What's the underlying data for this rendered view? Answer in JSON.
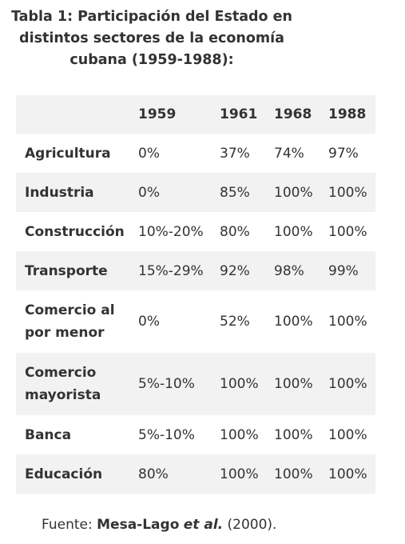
{
  "caption": {
    "line1": "Tabla 1: Participación del Estado en",
    "line2": "distintos sectores de la economía",
    "line3": "cubana (1959-1988):"
  },
  "table": {
    "headers": [
      "",
      "1959",
      "1961",
      "1968",
      "1988"
    ],
    "rows": [
      {
        "sector": "Agricultura",
        "values": [
          "0%",
          "37%",
          "74%",
          "97%"
        ]
      },
      {
        "sector": "Industria",
        "values": [
          "0%",
          "85%",
          "100%",
          "100%"
        ]
      },
      {
        "sector": "Construcción",
        "values": [
          "10%-20%",
          "80%",
          "100%",
          "100%"
        ]
      },
      {
        "sector": "Transporte",
        "values": [
          "15%-29%",
          "92%",
          "98%",
          "99%"
        ]
      },
      {
        "sector": "Comercio al por menor",
        "values": [
          "0%",
          "52%",
          "100%",
          "100%"
        ]
      },
      {
        "sector": "Comercio mayorista",
        "values": [
          "5%-10%",
          "100%",
          "100%",
          "100%"
        ]
      },
      {
        "sector": "Banca",
        "values": [
          "5%-10%",
          "100%",
          "100%",
          "100%"
        ]
      },
      {
        "sector": "Educación",
        "values": [
          "80%",
          "100%",
          "100%",
          "100%"
        ]
      }
    ]
  },
  "source": {
    "prefix": "Fuente: ",
    "author": "Mesa-Lago",
    "etal": "et al.",
    "year": " (2000)."
  }
}
